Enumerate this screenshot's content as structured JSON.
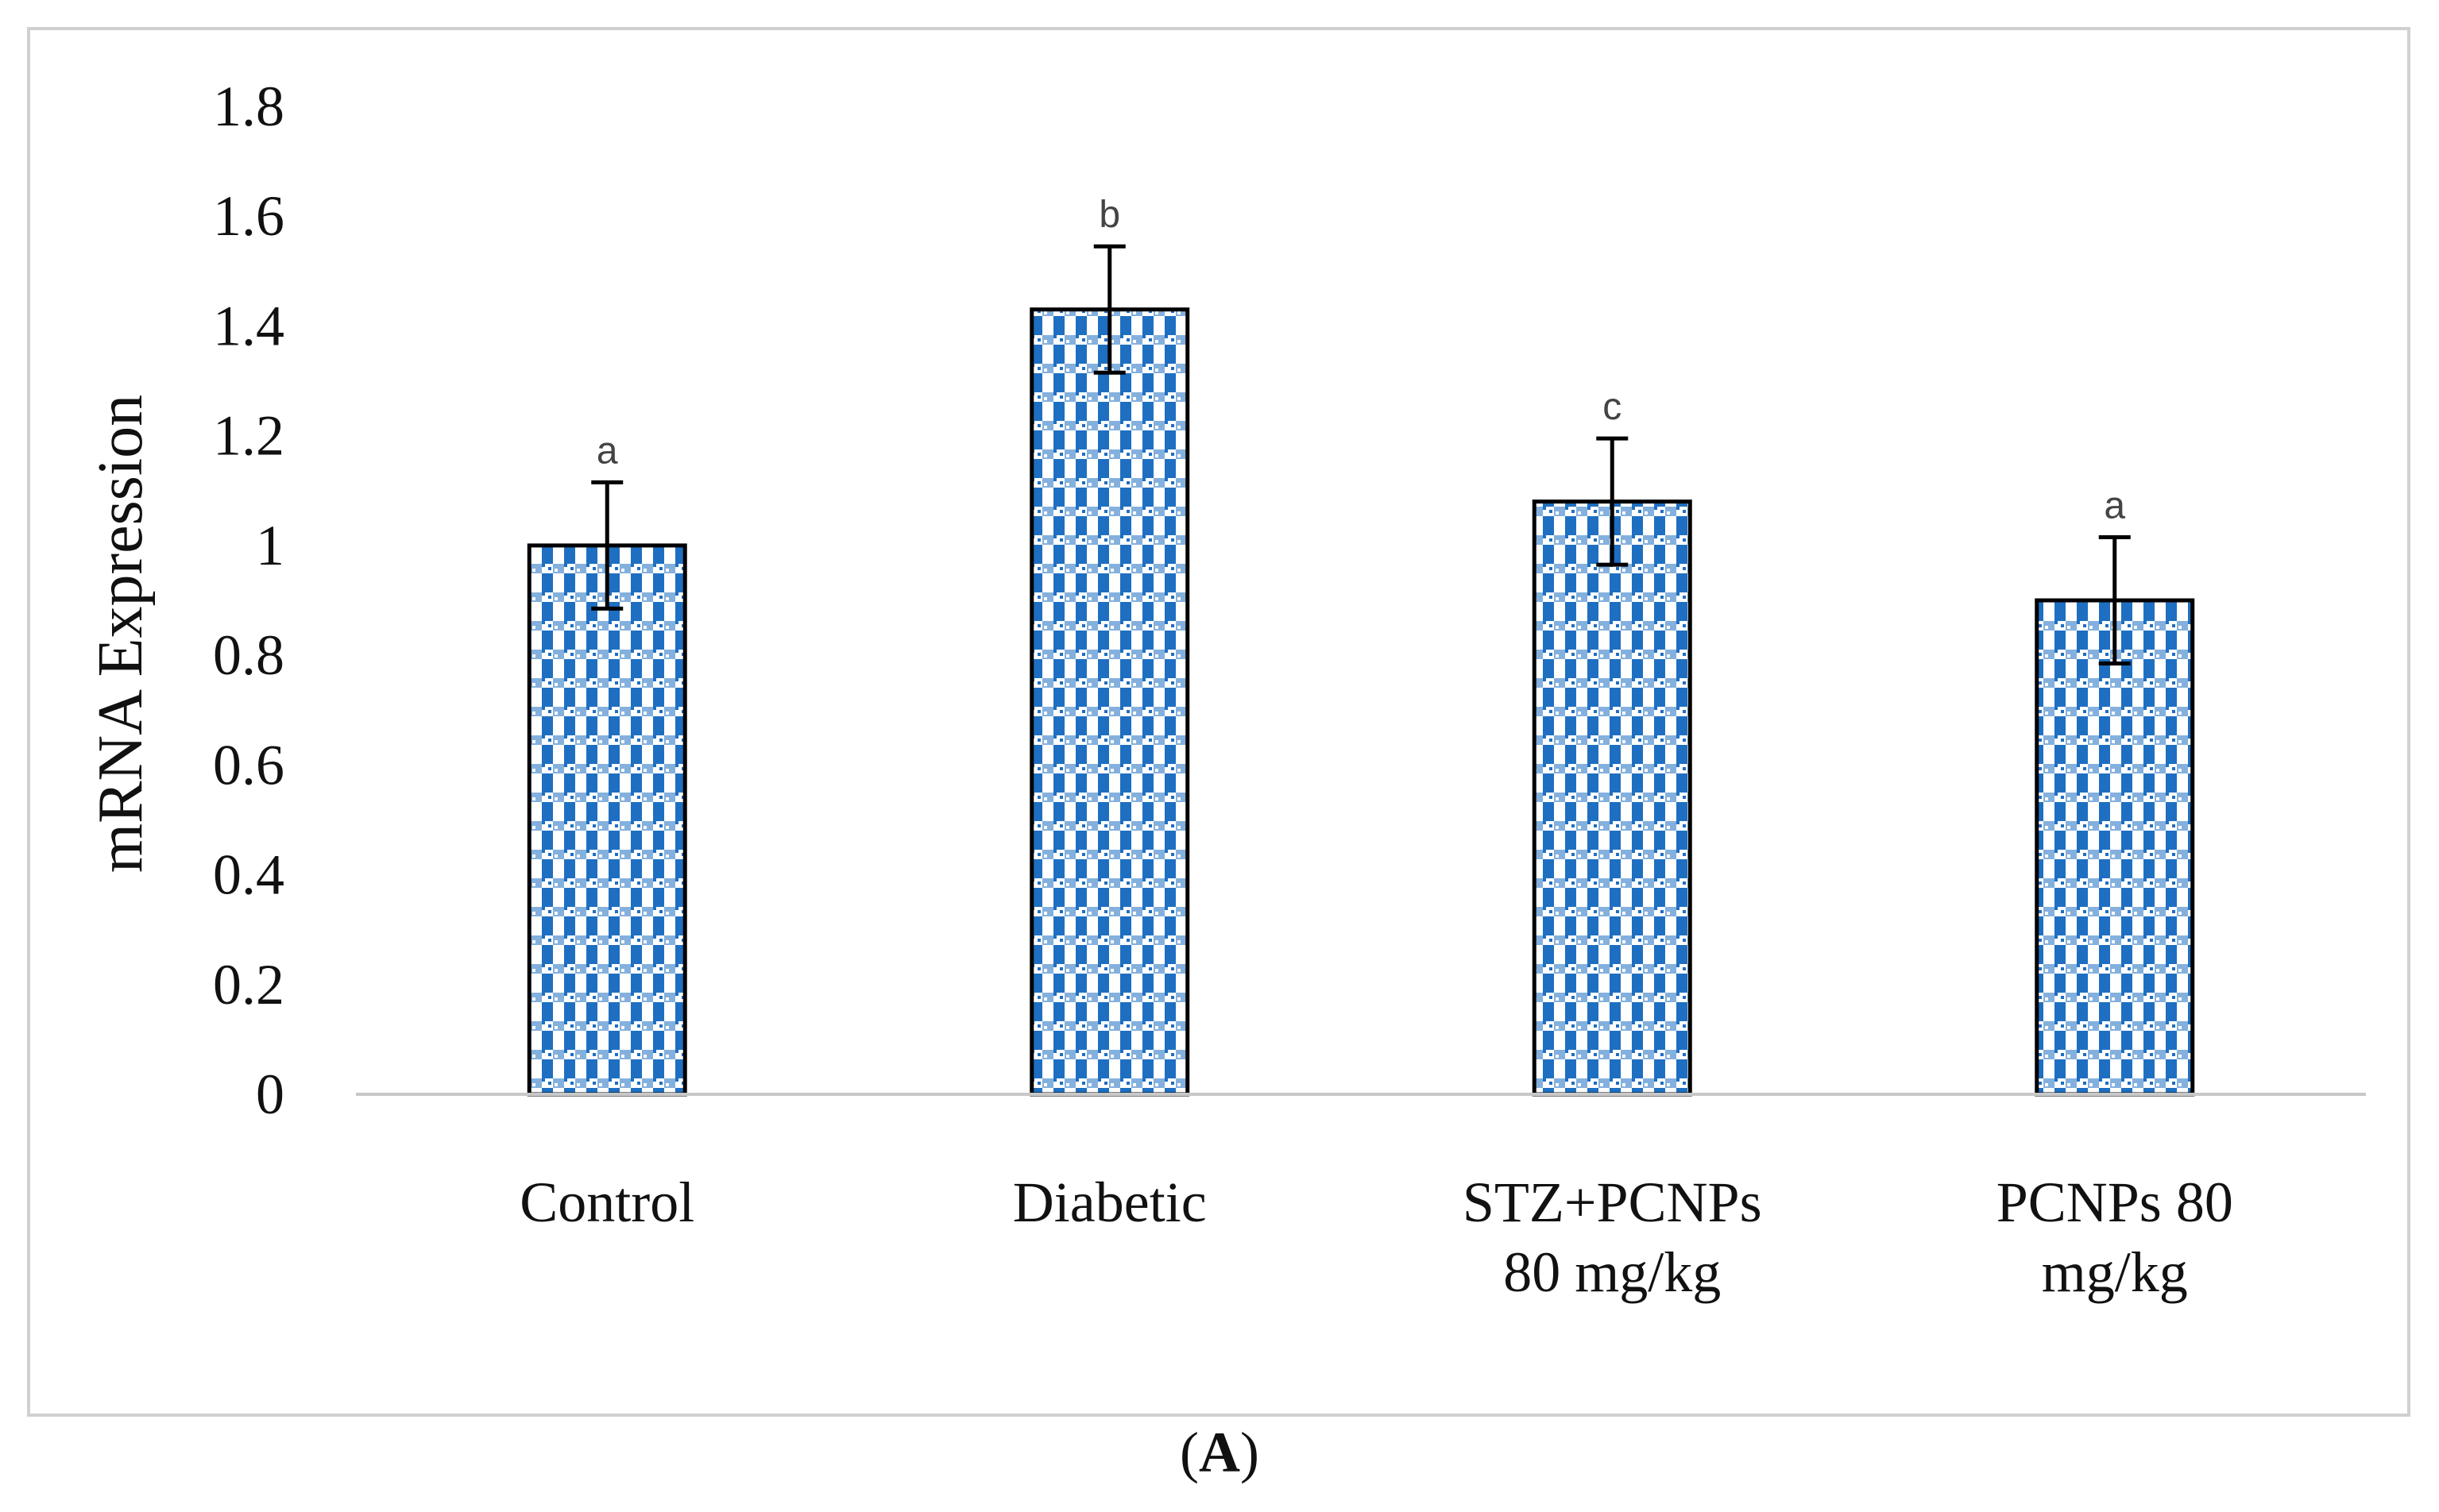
{
  "chart_data": {
    "type": "bar",
    "categories": [
      "Control",
      "Diabetic",
      "STZ+PCNPs 80 mg/kg",
      "PCNPs 80 mg/kg"
    ],
    "category_lines": [
      [
        "Control"
      ],
      [
        "Diabetic"
      ],
      [
        "STZ+PCNPs",
        "80 mg/kg"
      ],
      [
        "PCNPs 80",
        "mg/kg"
      ]
    ],
    "values": [
      1.0,
      1.43,
      1.08,
      0.9
    ],
    "errors": [
      0.115,
      0.115,
      0.115,
      0.115
    ],
    "significance_labels": [
      "a",
      "b",
      "c",
      "a"
    ],
    "title": "",
    "xlabel": "",
    "ylabel": "mRNA Expression",
    "ylim": [
      0,
      1.8
    ],
    "yticks": [
      "0",
      "0.2",
      "0.4",
      "0.6",
      "0.8",
      "1",
      "1.2",
      "1.4",
      "1.6",
      "1.8"
    ],
    "grid": false,
    "bar_color": "#1e6fc1",
    "bar_pattern_secondary": "#ffffff",
    "bar_edge_color": "#000000"
  },
  "caption": {
    "open": "(",
    "label": "A",
    "close": ")"
  }
}
